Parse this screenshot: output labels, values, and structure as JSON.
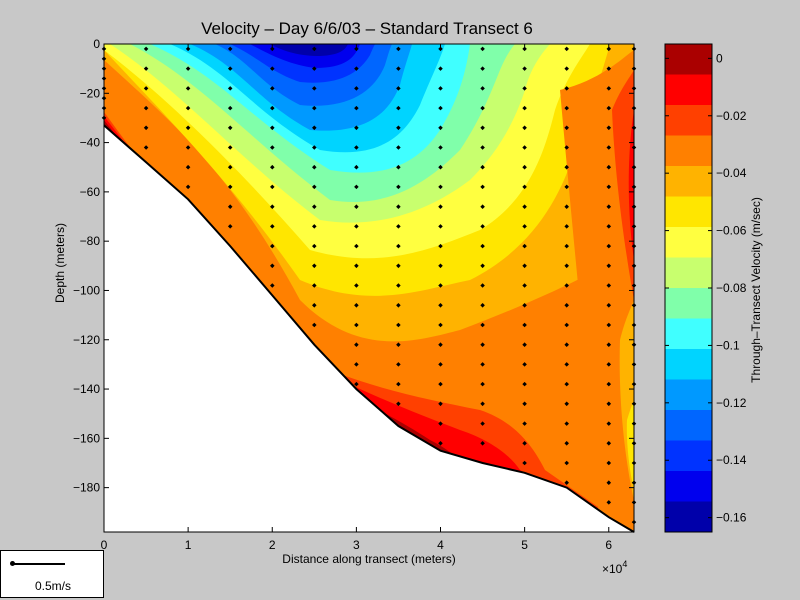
{
  "chart_data": {
    "type": "heatmap",
    "title": "Velocity – Day 6/6/03 – Standard Transect 6",
    "xlabel": "Distance along transect (meters)",
    "ylabel": "Depth (meters)",
    "x_multiplier_label": "×10",
    "x_multiplier_exp": "4",
    "xlim": [
      0,
      6.3
    ],
    "ylim": [
      -198,
      0
    ],
    "xticks": [
      "0",
      "1",
      "2",
      "3",
      "4",
      "5",
      "6"
    ],
    "yticks": [
      "0",
      "−20",
      "−40",
      "−60",
      "−80",
      "−100",
      "−120",
      "−140",
      "−160",
      "−180"
    ],
    "colorbar": {
      "label": "Through–Transect Velocity (m/sec)",
      "range": [
        -0.165,
        0.005
      ],
      "ticks": [
        "0",
        "−0.02",
        "−0.04",
        "−0.06",
        "−0.08",
        "−0.1",
        "−0.12",
        "−0.14",
        "−0.16"
      ],
      "levels": [
        "#aa0000",
        "#ff0000",
        "#ff4000",
        "#ff8000",
        "#ffb300",
        "#ffe600",
        "#ffff40",
        "#c8ff6e",
        "#80ffaa",
        "#40ffff",
        "#00d4ff",
        "#0099ff",
        "#0066ff",
        "#0033ff",
        "#0000ee",
        "#0000aa"
      ]
    },
    "bottom_profile": {
      "x": [
        0,
        0.5,
        1.0,
        1.5,
        2.0,
        2.5,
        3.0,
        3.5,
        4.0,
        4.5,
        5.0,
        5.5,
        6.0,
        6.3
      ],
      "depth": [
        -33,
        -48,
        -63,
        -82,
        -102,
        -122,
        -140,
        -155,
        -165,
        -170,
        -174,
        -180,
        -192,
        -198
      ]
    },
    "stations_x": [
      0,
      0.5,
      1.0,
      1.5,
      2.0,
      2.5,
      3.0,
      3.5,
      4.0,
      4.5,
      5.0,
      5.5,
      6.0,
      6.3
    ]
  },
  "legend": {
    "scale_label": "0.5m/s"
  }
}
